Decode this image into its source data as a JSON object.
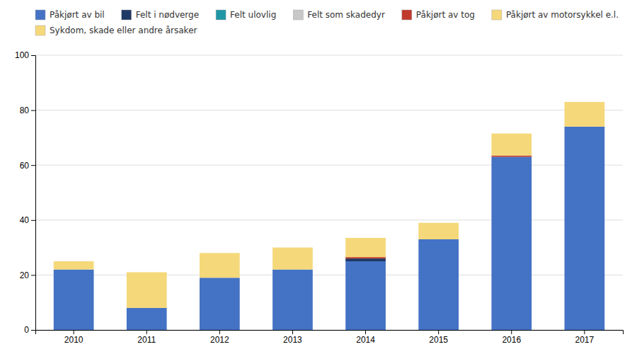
{
  "chart_data": {
    "type": "bar",
    "stacked": true,
    "categories": [
      "2010",
      "2011",
      "2012",
      "2013",
      "2014",
      "2015",
      "2016",
      "2017"
    ],
    "series": [
      {
        "name": "Påkjørt av bil",
        "color": "#4472C4",
        "values": [
          22,
          8,
          19,
          22,
          25,
          33,
          63,
          74
        ]
      },
      {
        "name": "Felt i nødverge",
        "color": "#1F3864",
        "values": [
          0,
          0,
          0,
          0,
          1,
          0,
          0,
          0
        ]
      },
      {
        "name": "Felt ulovlig",
        "color": "#2196A6",
        "values": [
          0,
          0,
          0,
          0,
          0,
          0,
          0,
          0
        ]
      },
      {
        "name": "Felt som skadedyr",
        "color": "#C8C8C8",
        "values": [
          0,
          0,
          0,
          0,
          0,
          0,
          0,
          0
        ]
      },
      {
        "name": "Påkjørt av tog",
        "color": "#C0392B",
        "values": [
          0,
          0,
          0,
          0,
          0.5,
          0,
          0.5,
          0
        ]
      },
      {
        "name": "Påkjørt av motorsykkel e.l.",
        "color": "#F5D87A",
        "values": [
          0,
          0,
          0,
          0,
          0,
          0,
          0,
          0
        ]
      },
      {
        "name": "Sykdom, skade eller andre årsaker",
        "color": "#F5D87A",
        "values": [
          3,
          13,
          9,
          8,
          7,
          6,
          8,
          9
        ]
      }
    ],
    "ylim": [
      0,
      100
    ],
    "yticks": [
      0,
      20,
      40,
      60,
      80,
      100
    ],
    "grid": true,
    "legend": "top"
  }
}
